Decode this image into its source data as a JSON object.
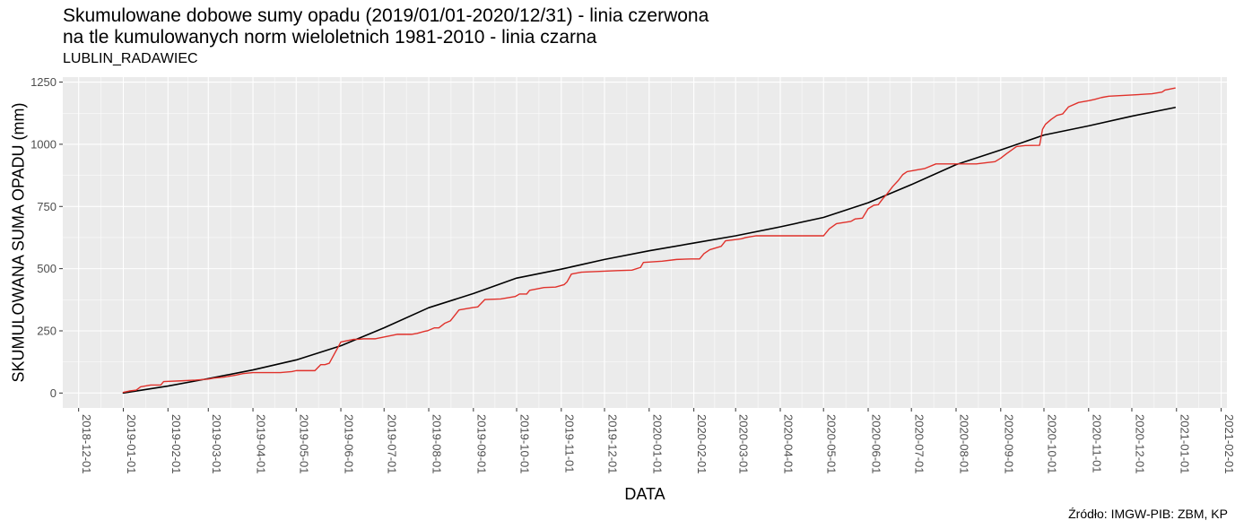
{
  "title_line1": "Skumulowane dobowe sumy opadu (2019/01/01-2020/12/31) - linia czerwona",
  "title_line2": "na tle kumulowanych norm wieloletnich 1981-2010 - linia czarna",
  "subtitle": "LUBLIN_RADAWIEC",
  "source": "Źródło: IMGW-PIB: ZBM, KP",
  "chart_data": {
    "type": "line",
    "xlabel": "DATA",
    "ylabel": "SKUMULOWANA SUMA OPADU (mm)",
    "ylim": [
      -60,
      1270
    ],
    "xlim": [
      "2018-11-20",
      "2021-02-05"
    ],
    "yticks": [
      0,
      250,
      500,
      750,
      1000,
      1250
    ],
    "xticks": [
      "2018-12-01",
      "2019-01-01",
      "2019-02-01",
      "2019-03-01",
      "2019-04-01",
      "2019-05-01",
      "2019-06-01",
      "2019-07-01",
      "2019-08-01",
      "2019-09-01",
      "2019-10-01",
      "2019-11-01",
      "2019-12-01",
      "2020-01-01",
      "2020-02-01",
      "2020-03-01",
      "2020-04-01",
      "2020-05-01",
      "2020-06-01",
      "2020-07-01",
      "2020-08-01",
      "2020-09-01",
      "2020-10-01",
      "2020-11-01",
      "2020-12-01",
      "2021-01-01",
      "2021-02-01"
    ],
    "grid": true,
    "background": "#ebebeb",
    "series": [
      {
        "color": "#000000",
        "x": [
          "2019-01-01",
          "2019-02-01",
          "2019-03-01",
          "2019-04-01",
          "2019-05-01",
          "2019-06-01",
          "2019-07-01",
          "2019-08-01",
          "2019-09-01",
          "2019-10-01",
          "2019-11-01",
          "2019-12-01",
          "2020-01-01",
          "2020-02-01",
          "2020-03-01",
          "2020-04-01",
          "2020-05-01",
          "2020-06-01",
          "2020-07-01",
          "2020-08-01",
          "2020-09-01",
          "2020-10-01",
          "2020-11-01",
          "2020-12-01",
          "2020-12-31"
        ],
        "y": [
          0,
          28,
          58,
          93,
          133,
          190,
          262,
          343,
          400,
          462,
          498,
          537,
          572,
          603,
          632,
          668,
          706,
          765,
          838,
          918,
          977,
          1037,
          1074,
          1113,
          1148
        ]
      },
      {
        "color": "#e0312b",
        "x": [
          "2019-01-01",
          "2019-01-05",
          "2019-01-10",
          "2019-01-13",
          "2019-01-20",
          "2019-01-27",
          "2019-01-29",
          "2019-02-10",
          "2019-02-20",
          "2019-03-01",
          "2019-03-05",
          "2019-03-12",
          "2019-03-20",
          "2019-03-25",
          "2019-04-01",
          "2019-04-20",
          "2019-04-28",
          "2019-05-01",
          "2019-05-14",
          "2019-05-18",
          "2019-05-21",
          "2019-05-24",
          "2019-06-01",
          "2019-06-10",
          "2019-06-13",
          "2019-06-17",
          "2019-06-25",
          "2019-07-10",
          "2019-07-20",
          "2019-07-24",
          "2019-07-29",
          "2019-07-31",
          "2019-08-05",
          "2019-08-08",
          "2019-08-12",
          "2019-08-16",
          "2019-08-22",
          "2019-09-01",
          "2019-09-04",
          "2019-09-09",
          "2019-09-20",
          "2019-09-30",
          "2019-10-03",
          "2019-10-08",
          "2019-10-10",
          "2019-10-20",
          "2019-10-28",
          "2019-11-03",
          "2019-11-05",
          "2019-11-08",
          "2019-11-15",
          "2019-12-01",
          "2019-12-10",
          "2019-12-20",
          "2019-12-26",
          "2019-12-28",
          "2020-01-10",
          "2020-01-20",
          "2020-01-30",
          "2020-02-01",
          "2020-02-05",
          "2020-02-08",
          "2020-02-12",
          "2020-02-20",
          "2020-02-23",
          "2020-03-01",
          "2020-03-05",
          "2020-03-08",
          "2020-03-12",
          "2020-03-15",
          "2020-03-20",
          "2020-04-01",
          "2020-04-15",
          "2020-04-30",
          "2020-05-01",
          "2020-05-05",
          "2020-05-10",
          "2020-05-20",
          "2020-05-23",
          "2020-05-28",
          "2020-06-01",
          "2020-06-05",
          "2020-06-08",
          "2020-06-11",
          "2020-06-14",
          "2020-06-18",
          "2020-06-22",
          "2020-06-25",
          "2020-06-28",
          "2020-07-02",
          "2020-07-05",
          "2020-07-10",
          "2020-07-18",
          "2020-07-22",
          "2020-07-27",
          "2020-08-05",
          "2020-08-15",
          "2020-08-28",
          "2020-09-01",
          "2020-09-05",
          "2020-09-10",
          "2020-09-12",
          "2020-09-18",
          "2020-09-28",
          "2020-09-30",
          "2020-10-02",
          "2020-10-06",
          "2020-10-10",
          "2020-10-14",
          "2020-10-18",
          "2020-10-25",
          "2020-11-01",
          "2020-11-05",
          "2020-11-10",
          "2020-11-15",
          "2020-12-01",
          "2020-12-15",
          "2020-12-22",
          "2020-12-24",
          "2020-12-31"
        ],
        "y": [
          3,
          8,
          12,
          25,
          32,
          32,
          46,
          49,
          52,
          56,
          60,
          64,
          72,
          78,
          82,
          82,
          86,
          90,
          90,
          114,
          114,
          120,
          205,
          216,
          216,
          218,
          218,
          236,
          236,
          240,
          248,
          250,
          262,
          262,
          280,
          290,
          334,
          344,
          346,
          376,
          378,
          388,
          398,
          398,
          413,
          424,
          426,
          436,
          447,
          478,
          486,
          490,
          492,
          494,
          505,
          525,
          530,
          537,
          539,
          539,
          539,
          560,
          576,
          590,
          612,
          617,
          620,
          625,
          629,
          632,
          632,
          632,
          632,
          632,
          632,
          660,
          681,
          690,
          700,
          703,
          741,
          755,
          757,
          780,
          800,
          830,
          855,
          878,
          890,
          894,
          897,
          902,
          921,
          921,
          921,
          921,
          921,
          930,
          944,
          962,
          983,
          991,
          995,
          996,
          1060,
          1080,
          1100,
          1116,
          1122,
          1150,
          1168,
          1175,
          1180,
          1188,
          1193,
          1198,
          1203,
          1210,
          1218,
          1226
        ]
      }
    ]
  }
}
